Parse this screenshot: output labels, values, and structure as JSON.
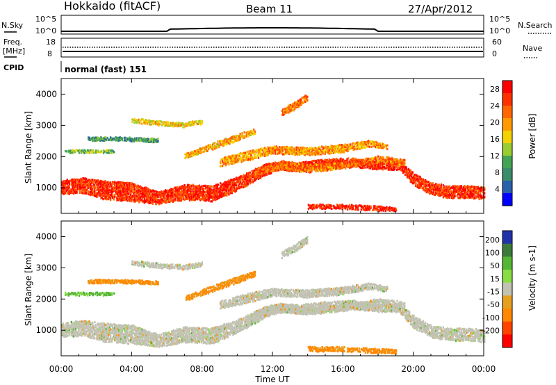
{
  "header": {
    "title": "Hokkaido (fitACF)",
    "beam": "Beam 11",
    "date": "27/Apr/2012"
  },
  "status": {
    "nsky_label": "N.Sky",
    "nsky_ticks": [
      "10^5",
      "10^0"
    ],
    "nsearch_label": "N.Search",
    "nsearch_ticks": [
      "10^5",
      "10^0"
    ],
    "freq_label_1": "Freq.",
    "freq_label_2": "[MHz]",
    "freq_ticks": [
      "18",
      "8"
    ],
    "nave_label": "Nave",
    "nave_ticks": [
      "60",
      "0"
    ],
    "cpid_label": "CPID",
    "cpid_value": "normal (fast) 151"
  },
  "colors": {
    "power": [
      "#0000ff",
      "#2a5faa",
      "#3a8c6a",
      "#44a455",
      "#9acd32",
      "#f2d200",
      "#ff9a00",
      "#ff6600",
      "#ff3000",
      "#ff0000"
    ],
    "velocity": [
      "#2233aa",
      "#3b7a3b",
      "#55b535",
      "#88dd44",
      "#c2c2b2",
      "#e6a020",
      "#ff8800",
      "#ff4400",
      "#ff0000"
    ],
    "ground_scatter": "#c2c2b2"
  },
  "chart_data": [
    {
      "type": "heatmap",
      "panel": "power",
      "xlabel": "",
      "ylabel": "Slant Range [km]",
      "x_ticks": [
        "00:00",
        "04:00",
        "08:00",
        "12:00",
        "16:00",
        "20:00",
        "00:00"
      ],
      "xlim_hours": [
        0,
        24
      ],
      "ylim": [
        180,
        4500
      ],
      "y_ticks": [
        1000,
        2000,
        3000,
        4000
      ],
      "colorbar": {
        "label": "Power [dB]",
        "ticks": [
          4,
          8,
          12,
          16,
          20,
          24,
          28
        ],
        "range": [
          0,
          30
        ]
      },
      "scatter_bands": [
        {
          "t": [
            0.0,
            1.2,
            2.5,
            4.0,
            5.5,
            7.0,
            8.5,
            9.5,
            10.5,
            11.5,
            12.3,
            13.5,
            15.0,
            16.5,
            18.0,
            19.2,
            20.0,
            21.0,
            22.0,
            23.0,
            24.0
          ],
          "center": [
            1000,
            1050,
            900,
            850,
            650,
            850,
            800,
            1000,
            1250,
            1550,
            1700,
            1650,
            1750,
            1800,
            1700,
            1700,
            1250,
            950,
            850,
            850,
            800
          ],
          "width": [
            450,
            500,
            600,
            600,
            400,
            500,
            500,
            450,
            400,
            350,
            300,
            300,
            300,
            300,
            250,
            300,
            400,
            400,
            400,
            400,
            400
          ],
          "level": 26
        },
        {
          "t": [
            11.0,
            12.5,
            14.0,
            16.0,
            18.0,
            19.5
          ],
          "center": [
            1500,
            1700,
            1600,
            1700,
            1900,
            1800
          ],
          "width": [
            200,
            250,
            250,
            200,
            200,
            200
          ],
          "level": 22
        },
        {
          "t": [
            9.0,
            10.5,
            12.0,
            14.0,
            16.0,
            17.5,
            18.5
          ],
          "center": [
            1800,
            2000,
            2200,
            2150,
            2250,
            2400,
            2300
          ],
          "width": [
            250,
            300,
            250,
            250,
            250,
            200,
            150
          ],
          "level": 20
        },
        {
          "t": [
            7.0,
            8.5,
            10.0,
            11.0
          ],
          "center": [
            2000,
            2300,
            2600,
            2800
          ],
          "width": [
            150,
            200,
            200,
            150
          ],
          "level": 19
        },
        {
          "t": [
            4.0,
            5.5,
            7.0,
            8.0
          ],
          "center": [
            3150,
            3050,
            3000,
            3100
          ],
          "width": [
            150,
            150,
            150,
            150
          ],
          "level": 17
        },
        {
          "t": [
            12.5,
            13.2,
            14.0
          ],
          "center": [
            3400,
            3600,
            3900
          ],
          "width": [
            200,
            250,
            200
          ],
          "level": 22
        },
        {
          "t": [
            1.5,
            3.5,
            5.5
          ],
          "center": [
            2550,
            2550,
            2500
          ],
          "width": [
            120,
            120,
            120
          ],
          "level": 9
        },
        {
          "t": [
            0.2,
            1.5,
            3.0
          ],
          "center": [
            2150,
            2150,
            2150
          ],
          "width": [
            100,
            100,
            100
          ],
          "level": 13
        },
        {
          "t": [
            14.0,
            16.0,
            18.0,
            19.0
          ],
          "center": [
            380,
            380,
            320,
            300
          ],
          "width": [
            150,
            150,
            150,
            120
          ],
          "level": 27
        }
      ]
    },
    {
      "type": "heatmap",
      "panel": "velocity",
      "xlabel": "Time UT",
      "ylabel": "Slant Range [km]",
      "x_ticks": [
        "00:00",
        "04:00",
        "08:00",
        "12:00",
        "16:00",
        "20:00",
        "00:00"
      ],
      "xlim_hours": [
        0,
        24
      ],
      "ylim": [
        180,
        4500
      ],
      "y_ticks": [
        1000,
        2000,
        3000,
        4000
      ],
      "colorbar": {
        "label": "Velocity [m s-1]",
        "ticks": [
          200,
          100,
          50,
          15,
          -15,
          -50,
          -100,
          -200
        ],
        "range": [
          -250,
          250
        ]
      },
      "scatter_bands": [
        {
          "t": [
            0.0,
            1.2,
            2.5,
            4.0,
            5.5,
            7.0,
            8.5,
            9.5,
            10.5,
            11.5,
            12.3,
            13.5,
            15.0,
            16.5,
            18.0,
            19.2,
            20.0,
            21.0,
            22.0,
            23.0,
            24.0
          ],
          "center": [
            1000,
            1050,
            900,
            850,
            650,
            850,
            800,
            1000,
            1250,
            1550,
            1700,
            1650,
            1750,
            1800,
            1700,
            1700,
            1250,
            950,
            850,
            850,
            800
          ],
          "width": [
            450,
            500,
            600,
            600,
            400,
            500,
            500,
            450,
            400,
            350,
            300,
            300,
            300,
            300,
            250,
            300,
            400,
            400,
            400,
            400,
            400
          ],
          "level": 0
        },
        {
          "t": [
            11.0,
            12.5,
            14.0,
            16.0,
            18.0,
            19.5
          ],
          "center": [
            1500,
            1700,
            1600,
            1700,
            1900,
            1800
          ],
          "width": [
            200,
            250,
            250,
            200,
            200,
            200
          ],
          "level": 0
        },
        {
          "t": [
            9.0,
            10.5,
            12.0,
            14.0,
            16.0,
            17.5,
            18.5
          ],
          "center": [
            1800,
            2000,
            2200,
            2150,
            2250,
            2400,
            2300
          ],
          "width": [
            250,
            300,
            250,
            250,
            250,
            200,
            150
          ],
          "level": 0
        },
        {
          "t": [
            7.0,
            8.5,
            10.0,
            11.0
          ],
          "center": [
            2000,
            2300,
            2600,
            2800
          ],
          "width": [
            150,
            200,
            200,
            150
          ],
          "level": -60
        },
        {
          "t": [
            4.0,
            5.5,
            7.0,
            8.0
          ],
          "center": [
            3150,
            3050,
            3000,
            3100
          ],
          "width": [
            150,
            150,
            150,
            150
          ],
          "level": 0
        },
        {
          "t": [
            12.5,
            13.2,
            14.0
          ],
          "center": [
            3400,
            3600,
            3900
          ],
          "width": [
            200,
            250,
            200
          ],
          "level": 0
        },
        {
          "t": [
            1.5,
            3.5,
            5.5
          ],
          "center": [
            2550,
            2550,
            2500
          ],
          "width": [
            120,
            120,
            120
          ],
          "level": -60
        },
        {
          "t": [
            0.2,
            1.5,
            3.0
          ],
          "center": [
            2150,
            2150,
            2150
          ],
          "width": [
            100,
            100,
            100
          ],
          "level": 60
        },
        {
          "t": [
            14.0,
            16.0,
            18.0,
            19.0
          ],
          "center": [
            380,
            380,
            320,
            300
          ],
          "width": [
            150,
            150,
            150,
            120
          ],
          "level": -70
        }
      ]
    }
  ]
}
